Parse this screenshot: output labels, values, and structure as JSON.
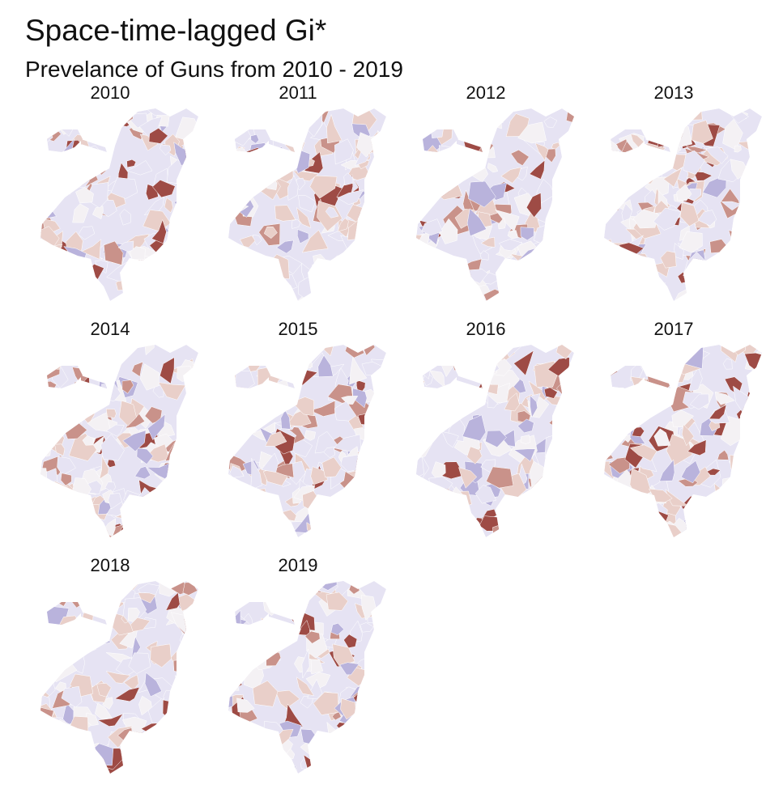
{
  "title": "Space-time-lagged Gi*",
  "subtitle": "Prevelance of Guns from 2010 - 2019",
  "colors": {
    "cold_strong": "#b9b3dc",
    "cold_light": "#e6e3f3",
    "neutral": "#f4f1f4",
    "hot_light": "#e9cfc9",
    "hot_mid": "#c9928a",
    "hot_strong": "#9e4b45"
  },
  "panels": [
    {
      "year": "2010"
    },
    {
      "year": "2011"
    },
    {
      "year": "2012"
    },
    {
      "year": "2013"
    },
    {
      "year": "2014"
    },
    {
      "year": "2015"
    },
    {
      "year": "2016"
    },
    {
      "year": "2017"
    },
    {
      "year": "2018"
    },
    {
      "year": "2019"
    }
  ]
}
